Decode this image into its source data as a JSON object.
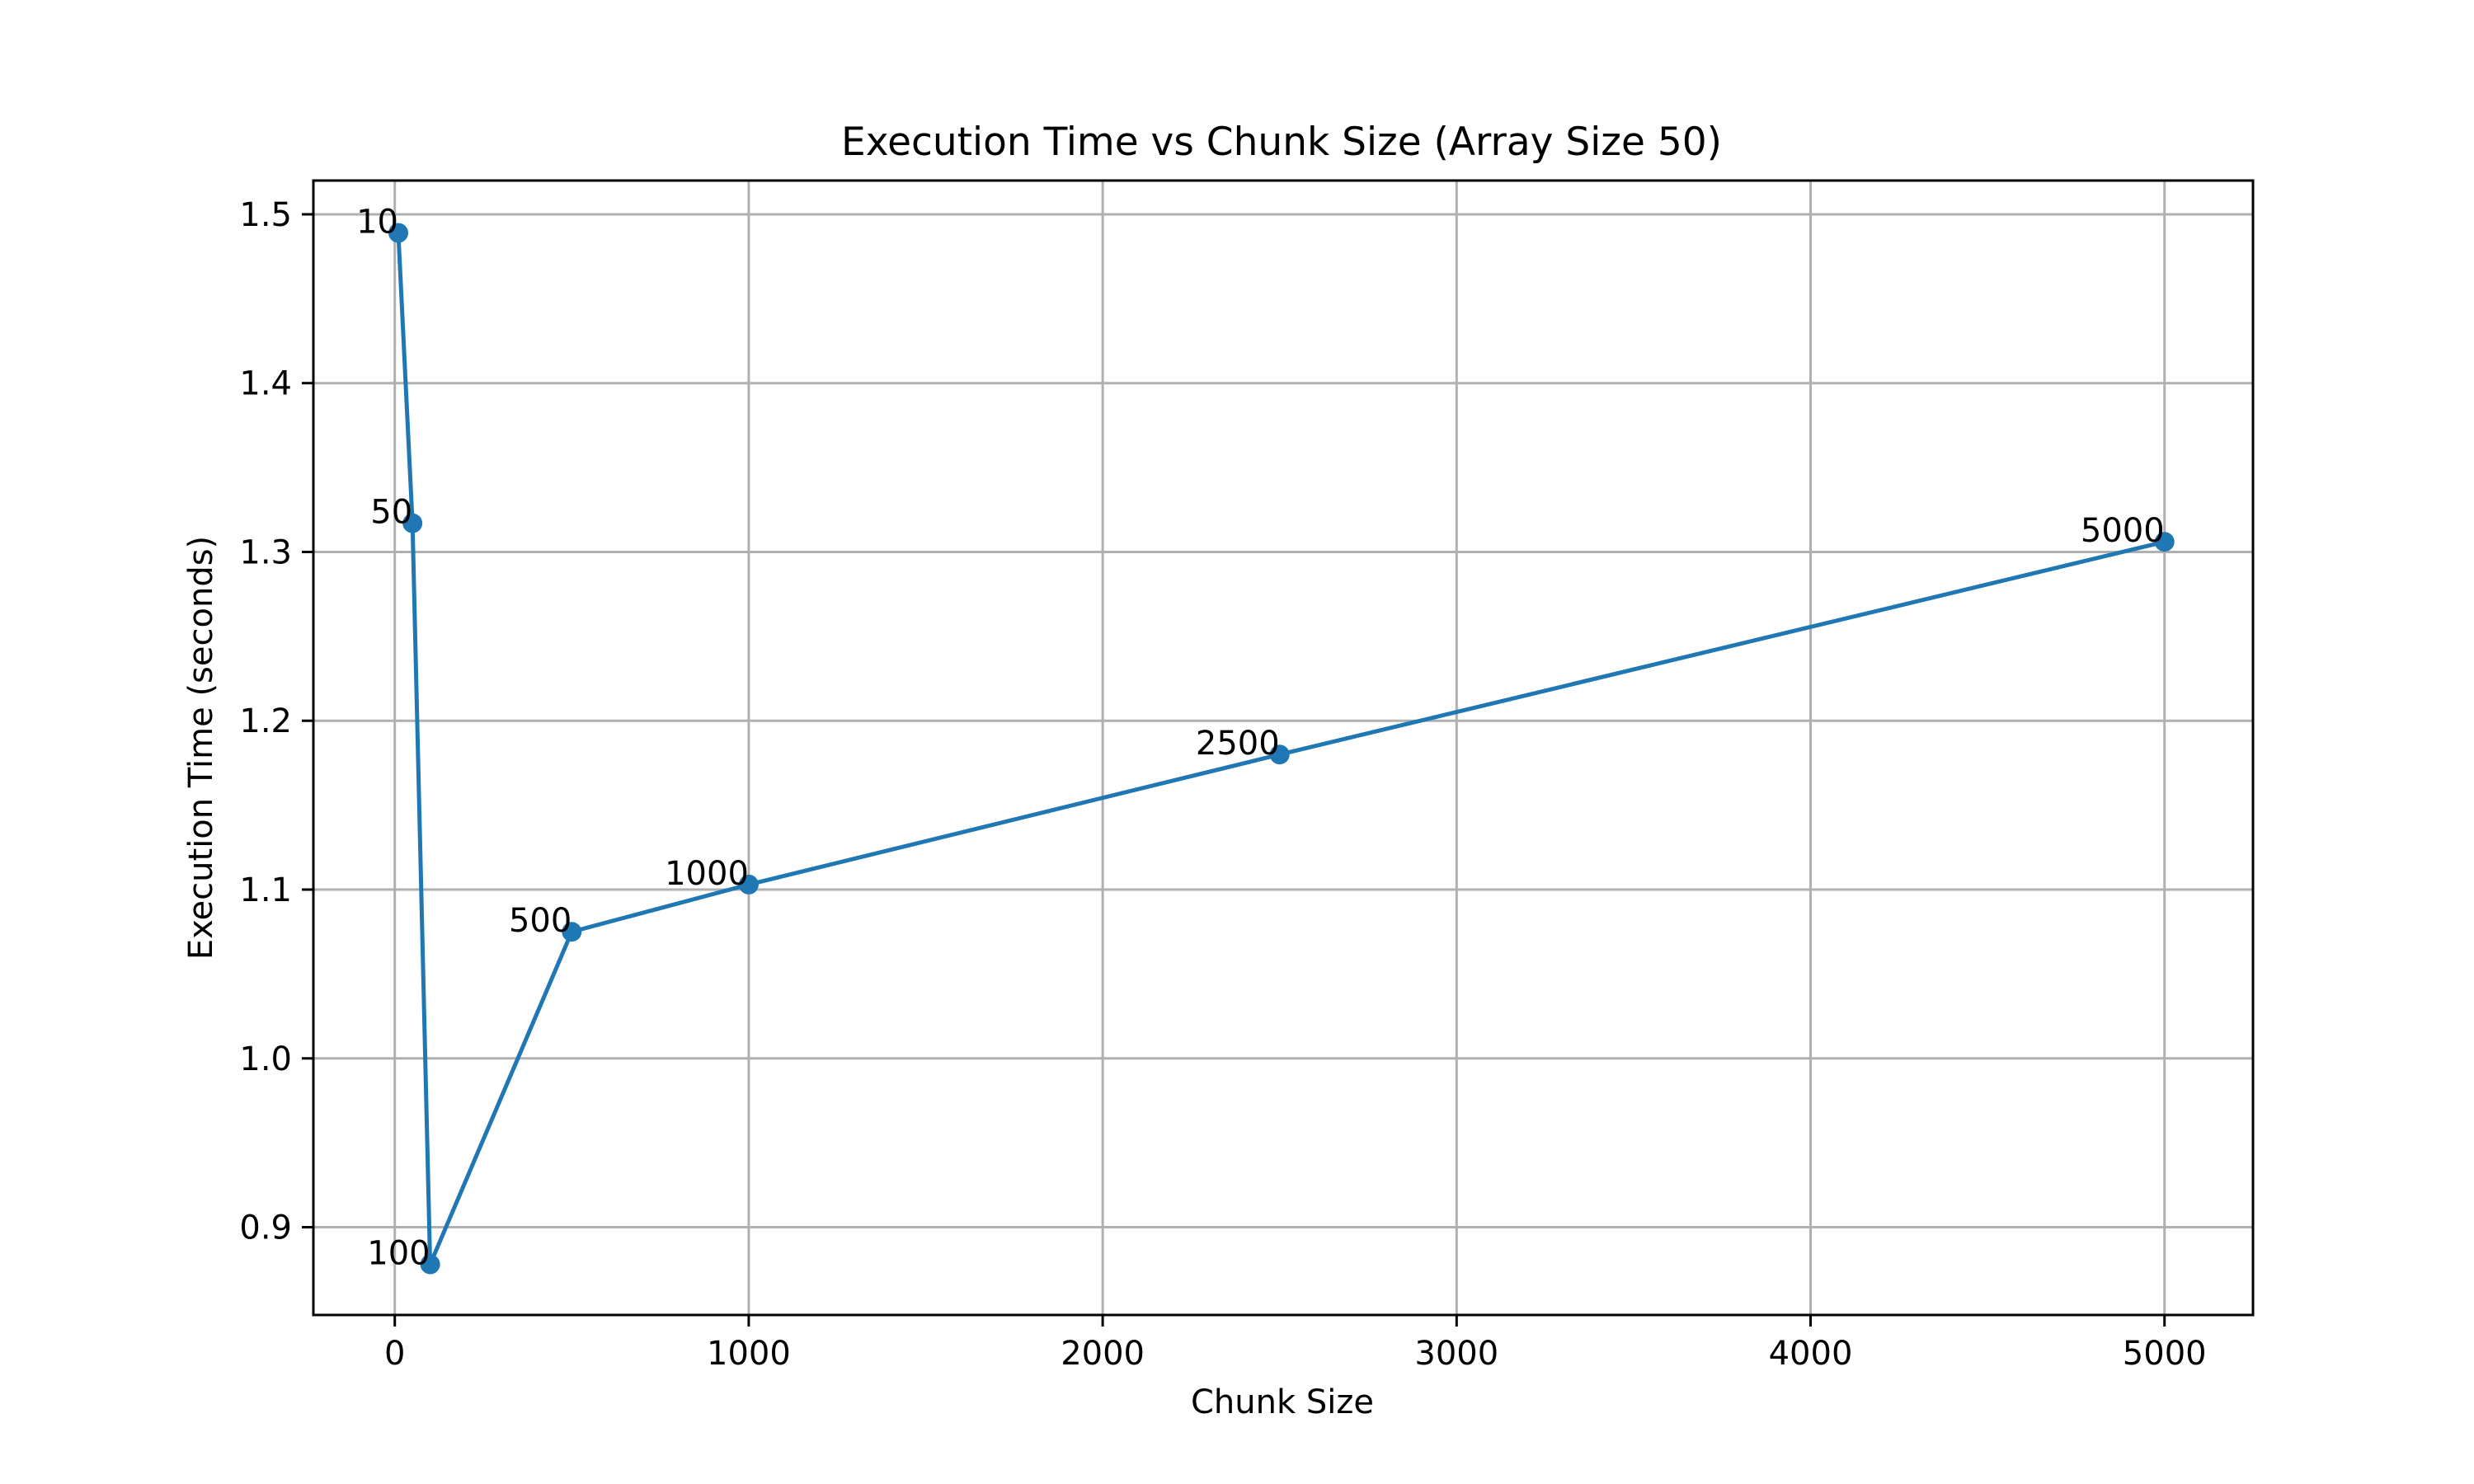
{
  "chart_data": {
    "type": "line",
    "title": "Execution Time vs Chunk Size (Array Size 50)",
    "xlabel": "Chunk Size",
    "ylabel": "Execution Time (seconds)",
    "xlim": [
      -230,
      5250
    ],
    "ylim": [
      0.848,
      1.52
    ],
    "xticks": [
      0,
      1000,
      2000,
      3000,
      4000,
      5000
    ],
    "yticks": [
      0.9,
      1.0,
      1.1,
      1.2,
      1.3,
      1.4,
      1.5
    ],
    "xtick_labels": [
      "0",
      "1000",
      "2000",
      "3000",
      "4000",
      "5000"
    ],
    "ytick_labels": [
      "0.9",
      "1.0",
      "1.1",
      "1.2",
      "1.3",
      "1.4",
      "1.5"
    ],
    "grid": true,
    "series": [
      {
        "color": "#1f77b4",
        "marker": "circle",
        "x": [
          10,
          50,
          100,
          500,
          1000,
          2500,
          5000
        ],
        "y": [
          1.489,
          1.317,
          0.878,
          1.075,
          1.103,
          1.18,
          1.306
        ],
        "point_labels": [
          "10",
          "50",
          "100",
          "500",
          "1000",
          "2500",
          "5000"
        ]
      }
    ]
  }
}
